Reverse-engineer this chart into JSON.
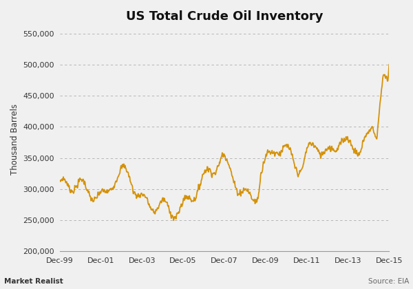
{
  "title": "US Total Crude Oil Inventory",
  "ylabel": "Thousand Barrels",
  "line_color": "#D4920A",
  "bg_color": "#F0F0F0",
  "plot_bg_color": "#F0F0F0",
  "grid_color": "#AAAAAA",
  "ylim": [
    200000,
    560000
  ],
  "yticks": [
    200000,
    250000,
    300000,
    350000,
    400000,
    450000,
    500000,
    550000
  ],
  "xtick_labels": [
    "Dec-99",
    "Dec-01",
    "Dec-03",
    "Dec-05",
    "Dec-07",
    "Dec-09",
    "Dec-11",
    "Dec-13",
    "Dec-15"
  ],
  "source_text": "Source: EIA",
  "footer_text": "Market Realist",
  "title_fontsize": 13,
  "label_fontsize": 8.5,
  "tick_fontsize": 8
}
